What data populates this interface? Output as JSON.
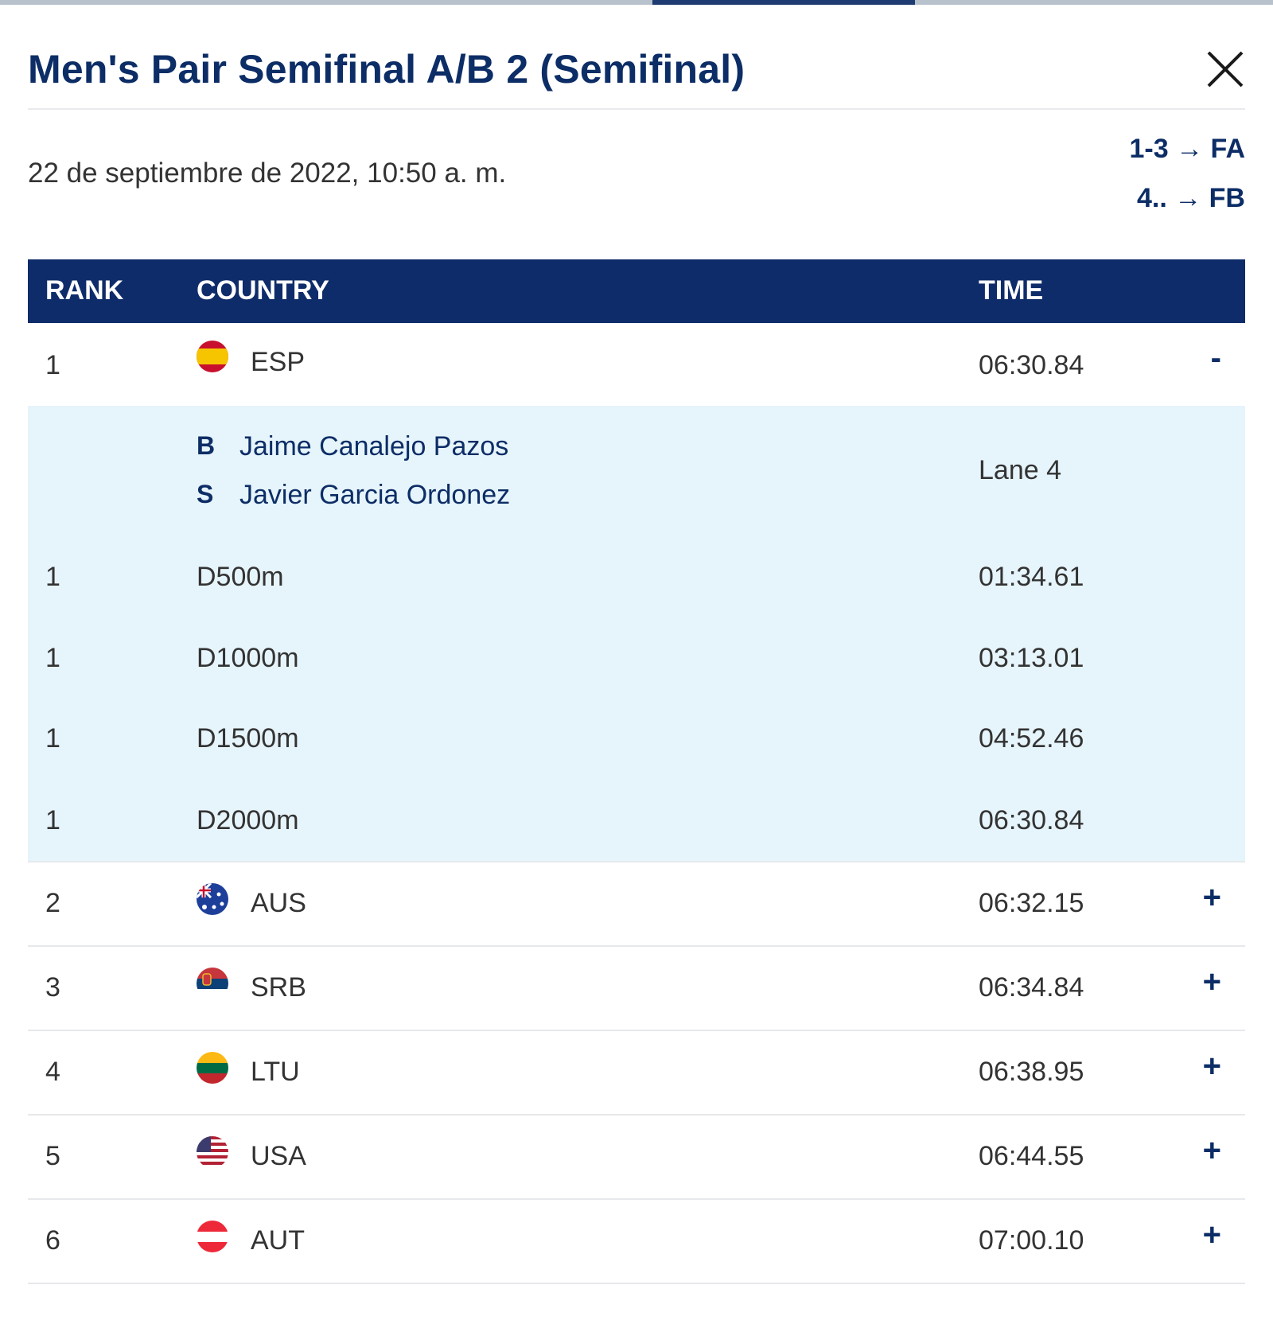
{
  "modal": {
    "title": "Men's Pair Semifinal A/B 2 (Semifinal)",
    "date": "22 de septiembre de 2022, 10:50 a. m.",
    "progression": [
      "1-3 → FA",
      "4.. → FB"
    ]
  },
  "table": {
    "headers": {
      "rank": "RANK",
      "country": "COUNTRY",
      "time": "TIME"
    },
    "rows": [
      {
        "rank": "1",
        "country": "ESP",
        "time": "06:30.84",
        "toggle": "-"
      },
      {
        "rank": "2",
        "country": "AUS",
        "time": "06:32.15",
        "toggle": "+"
      },
      {
        "rank": "3",
        "country": "SRB",
        "time": "06:34.84",
        "toggle": "+"
      },
      {
        "rank": "4",
        "country": "LTU",
        "time": "06:38.95",
        "toggle": "+"
      },
      {
        "rank": "5",
        "country": "USA",
        "time": "06:44.55",
        "toggle": "+"
      },
      {
        "rank": "6",
        "country": "AUT",
        "time": "07:00.10",
        "toggle": "+"
      }
    ],
    "detail": {
      "crew": [
        {
          "role": "B",
          "name": "Jaime Canalejo Pazos"
        },
        {
          "role": "S",
          "name": "Javier Garcia Ordonez"
        }
      ],
      "lane": "Lane 4",
      "splits": [
        {
          "rank": "1",
          "distance": "D500m",
          "time": "01:34.61"
        },
        {
          "rank": "1",
          "distance": "D1000m",
          "time": "03:13.01"
        },
        {
          "rank": "1",
          "distance": "D1500m",
          "time": "04:52.46"
        },
        {
          "rank": "1",
          "distance": "D2000m",
          "time": "06:30.84"
        }
      ]
    }
  },
  "colors": {
    "header_bg": "#0f2c6a",
    "title": "#0c2d66",
    "detail_bg": "#e6f4fb"
  },
  "icons": {
    "close": "close-icon",
    "flags": [
      "flag-esp-icon",
      "flag-aus-icon",
      "flag-srb-icon",
      "flag-ltu-icon",
      "flag-usa-icon",
      "flag-aut-icon"
    ]
  }
}
